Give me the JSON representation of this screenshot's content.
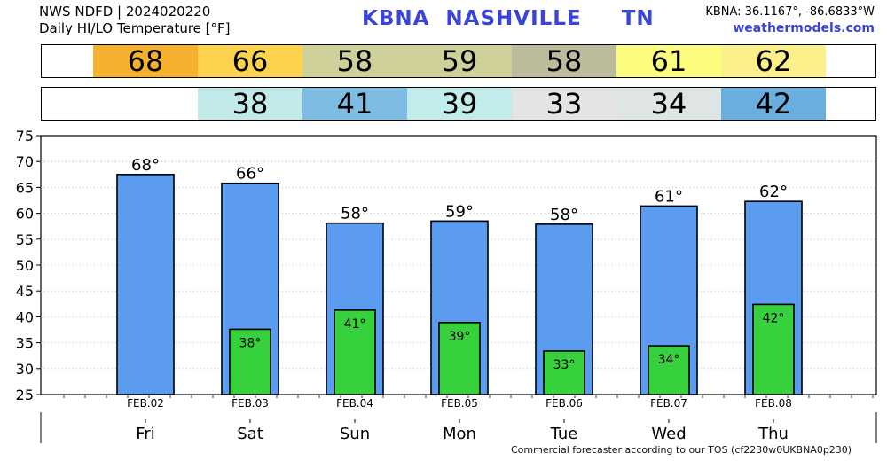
{
  "header": {
    "line1": "NWS NDFD | 2024020220",
    "line2": "Daily HI/LO Temperature [°F]",
    "title": "KBNA  NASHVILLE     TN",
    "coords": "KBNA: 36.1167°, -86.6833°W",
    "site": "weathermodels.com"
  },
  "hi_strip": [
    {
      "value": "68",
      "color": "#f5b12e"
    },
    {
      "value": "66",
      "color": "#fdd34d"
    },
    {
      "value": "58",
      "color": "#cfcf9a"
    },
    {
      "value": "59",
      "color": "#cfcf9a"
    },
    {
      "value": "58",
      "color": "#bcbc9c"
    },
    {
      "value": "61",
      "color": "#fcfc7e"
    },
    {
      "value": "62",
      "color": "#fcf08a"
    }
  ],
  "lo_strip": [
    {
      "value": "",
      "color": "#ffffff"
    },
    {
      "value": "38",
      "color": "#c2eaea"
    },
    {
      "value": "41",
      "color": "#7dbde3"
    },
    {
      "value": "39",
      "color": "#c2ecec"
    },
    {
      "value": "33",
      "color": "#e4e4e4"
    },
    {
      "value": "34",
      "color": "#dfe5e5"
    },
    {
      "value": "42",
      "color": "#6aaee0"
    }
  ],
  "footer": "Commercial forecaster according to our TOS (cf2230w0UKBNA0p230)",
  "chart_data": {
    "type": "bar",
    "categories": [
      "Fri",
      "Sat",
      "Sun",
      "Mon",
      "Tue",
      "Wed",
      "Thu"
    ],
    "dates": [
      "FEB.02",
      "FEB.03",
      "FEB.04",
      "FEB.05",
      "FEB.06",
      "FEB.07",
      "FEB.08"
    ],
    "series": [
      {
        "values": [
          67.5,
          65.8,
          58.1,
          58.5,
          57.9,
          61.4,
          62.3
        ],
        "labels": [
          "68°",
          "66°",
          "58°",
          "59°",
          "58°",
          "61°",
          "62°"
        ],
        "color": "#5b9cf0"
      },
      {
        "values": [
          null,
          37.6,
          41.3,
          38.9,
          33.4,
          34.4,
          42.4
        ],
        "labels": [
          "",
          "38°",
          "41°",
          "39°",
          "33°",
          "34°",
          "42°"
        ],
        "color": "#36d13c"
      }
    ],
    "yticks": [
      "75",
      "70",
      "65",
      "60",
      "55",
      "50",
      "45",
      "40",
      "35",
      "30",
      "25"
    ],
    "ylim": [
      25,
      75
    ],
    "grid": true
  }
}
